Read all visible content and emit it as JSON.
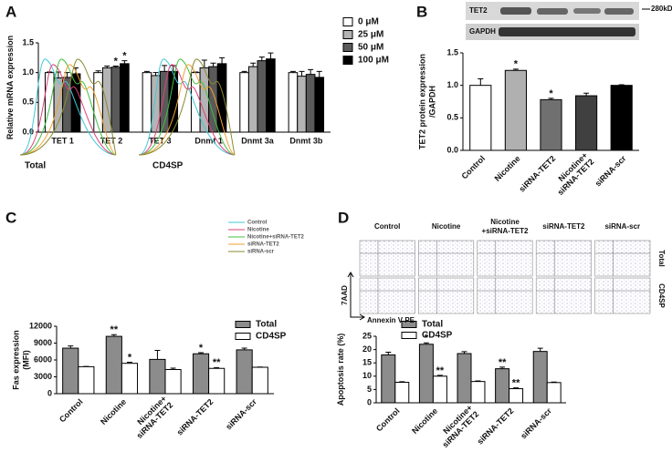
{
  "chart_data": [
    {
      "type": "bar",
      "panel": "A",
      "ylabel": [
        "Relative mRNA expression"
      ],
      "categories": [
        "TET 1",
        "TET 2",
        "TET 3",
        "Dnmt 1",
        "Dnmt 3a",
        "Dnmt 3b"
      ],
      "series": [
        {
          "name": "0 μM",
          "color": "#ffffff",
          "values": [
            1,
            1,
            1,
            1,
            1,
            1
          ],
          "errors": [
            0.01,
            0.03,
            0.02,
            0.01,
            0.02,
            0.02
          ]
        },
        {
          "name": "25 μM",
          "color": "#b4b4b4",
          "values": [
            0.91,
            1.08,
            0.95,
            1.08,
            1.1,
            0.94
          ],
          "errors": [
            0.1,
            0.03,
            0.05,
            0.13,
            0.06,
            0.08
          ]
        },
        {
          "name": "50 μM",
          "color": "#5a5a5a",
          "values": [
            0.92,
            1.09,
            1.02,
            1.1,
            1.2,
            0.97
          ],
          "errors": [
            0.08,
            0.02,
            0.1,
            0.06,
            0.06,
            0.08
          ],
          "significance": [
            null,
            "*",
            null,
            null,
            null,
            null
          ]
        },
        {
          "name": "100 μM",
          "color": "#000000",
          "values": [
            0.98,
            1.15,
            1.02,
            1.15,
            1.23,
            0.92
          ],
          "errors": [
            0.1,
            0.05,
            0.1,
            0.1,
            0.1,
            0.1
          ],
          "significance": [
            null,
            "*",
            null,
            null,
            null,
            null
          ]
        }
      ],
      "ylim": [
        0,
        1.5
      ],
      "yticks": [
        {
          "value": 0,
          "label": "0.0"
        },
        0.5,
        {
          "value": 1,
          "label": "1.0"
        },
        1.5
      ]
    },
    {
      "type": "bar",
      "panel": "B",
      "ylabel": [
        "TET2 protein expression",
        "/GAPDH"
      ],
      "blot_labels": [
        "TET2",
        "GAPDH"
      ],
      "blot_marker": "280kD",
      "categories": [
        "Control",
        "Nicotine",
        "siRNA-TET2",
        "Nicotine+ siRNA-TET2",
        "siRNA-scr"
      ],
      "values": [
        1.0,
        1.23,
        0.78,
        0.84,
        1.0
      ],
      "errors": [
        0.1,
        0.02,
        0.02,
        0.04,
        0.01
      ],
      "significance": [
        null,
        "*",
        "*",
        null,
        null
      ],
      "colors": [
        "#ffffff",
        "#b0b0b0",
        "#707070",
        "#404040",
        "#000000"
      ],
      "ylim": [
        0,
        1.5
      ],
      "yticks": [
        {
          "value": 0,
          "label": "0.0"
        },
        0.5,
        {
          "value": 1,
          "label": "1.0"
        },
        1.5
      ]
    },
    {
      "type": "bar",
      "panel": "C",
      "ylabel": [
        "Fas expression",
        "(MFI)"
      ],
      "histogram_legend": [
        "Control",
        "Nicotine",
        "Nicotine+siRNA-TET2",
        "siRNA-TET2",
        "siRNA-scr"
      ],
      "histogram_colors": [
        "#40c8d8",
        "#e0407a",
        "#40c040",
        "#f0a030",
        "#8a8a30"
      ],
      "histogram_labels": [
        "Total",
        "CD4SP"
      ],
      "categories": [
        "Control",
        "Nicotine",
        "Nicotine+ siRNA-TET2",
        "siRNA-TET2",
        "siRNA-scr"
      ],
      "series": [
        {
          "name": "Total",
          "color": "#8c8c8c",
          "values": [
            8100,
            10200,
            6100,
            7100,
            7800
          ],
          "errors": [
            400,
            300,
            1600,
            200,
            300
          ],
          "significance": [
            null,
            "**",
            null,
            "*",
            null
          ]
        },
        {
          "name": "CD4SP",
          "color": "#ffffff",
          "values": [
            4800,
            5400,
            4300,
            4500,
            4700
          ],
          "errors": [
            50,
            200,
            250,
            150,
            50
          ],
          "significance": [
            null,
            "*",
            null,
            "**",
            null
          ]
        }
      ],
      "ylim": [
        0,
        12000
      ],
      "yticks": [
        0,
        3000,
        6000,
        9000,
        12000
      ]
    },
    {
      "type": "bar",
      "panel": "D",
      "ylabel": [
        "Apoptosis rate (%)"
      ],
      "dot_plot_columns": [
        "Control",
        "Nicotine",
        "Nicotine +siRNA-TET2",
        "siRNA-TET2",
        "siRNA-scr"
      ],
      "dot_plot_rows": [
        "Total",
        "CD4SP"
      ],
      "dot_plot_axes": [
        "7AAD",
        "Annexin V PE"
      ],
      "categories": [
        "Control",
        "Nicotine",
        "Nicotine+ siRNA-TET2",
        "siRNA-TET2",
        "siRNA-scr"
      ],
      "series": [
        {
          "name": "Total",
          "color": "#8c8c8c",
          "values": [
            18,
            22,
            18.5,
            12.8,
            19.3
          ],
          "errors": [
            1,
            0.5,
            0.7,
            0.6,
            1.2
          ],
          "significance": [
            null,
            "*",
            null,
            "**",
            null
          ]
        },
        {
          "name": "CD4SP",
          "color": "#ffffff",
          "values": [
            7.7,
            10,
            8,
            5.3,
            7.6
          ],
          "errors": [
            0.2,
            0.3,
            0.2,
            0.3,
            0.2
          ],
          "significance": [
            null,
            "**",
            null,
            "**",
            null
          ]
        }
      ],
      "ylim": [
        0,
        25
      ],
      "yticks": [
        0,
        5,
        10,
        15,
        20,
        25
      ]
    }
  ]
}
